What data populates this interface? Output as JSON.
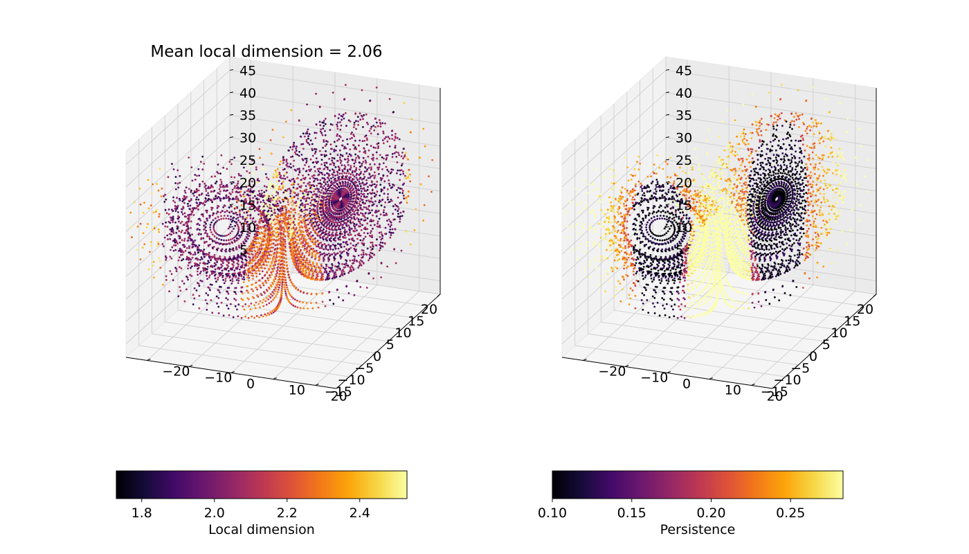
{
  "chart_data": [
    {
      "type": "scatter",
      "projection": "3d",
      "title": "Mean local dimension = 2.06",
      "x_ticks": [
        -15,
        -10,
        -5,
        0,
        5,
        10,
        15,
        20
      ],
      "y_ticks": [
        -20,
        -10,
        0,
        10,
        20
      ],
      "z_ticks": [
        5,
        10,
        15,
        20,
        25,
        30,
        35,
        40,
        45
      ],
      "xlim": [
        -20,
        20
      ],
      "ylim": [
        -25,
        25
      ],
      "zlim": [
        2,
        48
      ],
      "grid": true,
      "colormap": "inferno",
      "colorbar": {
        "label": "Local dimension",
        "range": [
          1.73,
          2.53
        ],
        "ticks": [
          1.8,
          2.0,
          2.2,
          2.4
        ],
        "tick_labels": [
          "1.8",
          "2.0",
          "2.2",
          "2.4"
        ],
        "placement": "bottom"
      }
    },
    {
      "type": "scatter",
      "projection": "3d",
      "title": "",
      "x_ticks": [
        -15,
        -10,
        -5,
        0,
        5,
        10,
        15,
        20
      ],
      "y_ticks": [
        -20,
        -10,
        0,
        10,
        20
      ],
      "z_ticks": [
        5,
        10,
        15,
        20,
        25,
        30,
        35,
        40,
        45
      ],
      "xlim": [
        -20,
        20
      ],
      "ylim": [
        -25,
        25
      ],
      "zlim": [
        2,
        48
      ],
      "grid": true,
      "colormap": "inferno",
      "colorbar": {
        "label": "Persistence",
        "range": [
          0.1,
          0.283
        ],
        "ticks": [
          0.1,
          0.15,
          0.2,
          0.25
        ],
        "tick_labels": [
          "0.10",
          "0.15",
          "0.20",
          "0.25"
        ],
        "placement": "bottom"
      }
    }
  ]
}
